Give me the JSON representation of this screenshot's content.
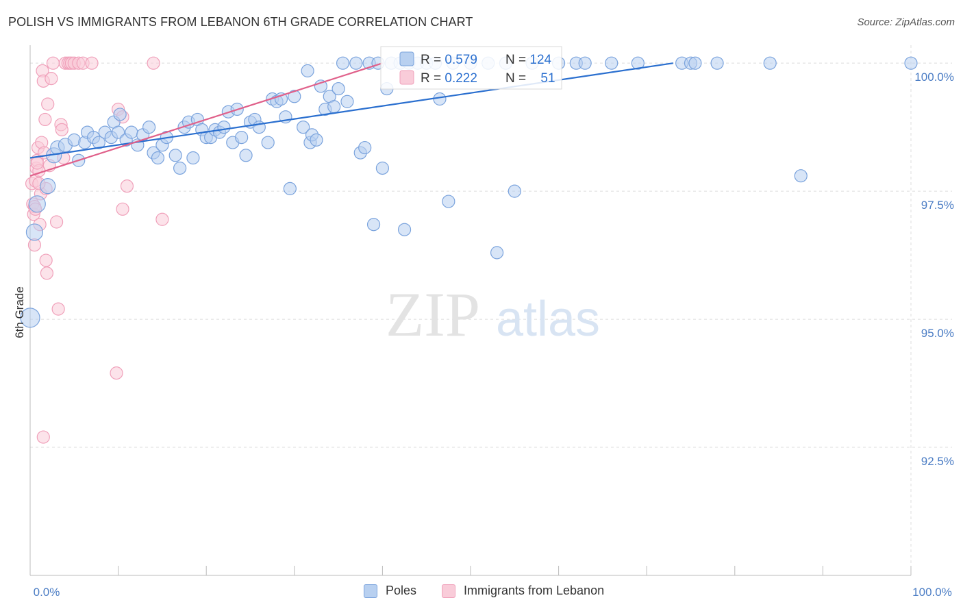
{
  "header": {
    "title": "POLISH VS IMMIGRANTS FROM LEBANON 6TH GRADE CORRELATION CHART",
    "source": "Source: ZipAtlas.com"
  },
  "watermark": {
    "zip": "ZIP",
    "atlas": "atlas"
  },
  "colors": {
    "poles": "#7aa3dd",
    "poles_fill": "#b8d0f0",
    "poles_line": "#2a6fcf",
    "lebanon": "#f0a0ba",
    "lebanon_fill": "#f9ccd9",
    "lebanon_line": "#e0608a",
    "tick_blue": "#4a7cc4",
    "grid": "#dcdcdc"
  },
  "legend_top": {
    "rows": [
      {
        "r_label": "R = ",
        "r_value": "0.579",
        "n_label": "N = ",
        "n_value": "124"
      },
      {
        "r_label": "R = ",
        "r_value": "0.222",
        "n_label": "N = ",
        "n_value": "51"
      }
    ]
  },
  "legend_bottom": {
    "poles": "Poles",
    "lebanon": "Immigrants from Lebanon"
  },
  "chart_data": {
    "type": "scatter",
    "title": "POLISH VS IMMIGRANTS FROM LEBANON 6TH GRADE CORRELATION CHART",
    "xlabel": "",
    "ylabel": "6th Grade",
    "xlim": [
      0,
      100
    ],
    "ylim": [
      90.0,
      100.35
    ],
    "x_tick_labels": [
      "0.0%",
      "100.0%"
    ],
    "y_ticks": [
      92.5,
      95.0,
      97.5,
      100.0
    ],
    "y_tick_labels": [
      "92.5%",
      "95.0%",
      "97.5%",
      "100.0%"
    ],
    "series": [
      {
        "name": "Poles",
        "R": 0.579,
        "N": 124,
        "trend": {
          "x": [
            0,
            73
          ],
          "y": [
            98.15,
            100.0
          ]
        },
        "points": [
          [
            0.0,
            95.03,
            14
          ],
          [
            0.5,
            96.7,
            12
          ],
          [
            0.8,
            97.25,
            12
          ],
          [
            2.0,
            97.6,
            11
          ],
          [
            2.7,
            98.2,
            11
          ],
          [
            3.1,
            98.35,
            10
          ],
          [
            4.0,
            98.4,
            10
          ],
          [
            5.0,
            98.5,
            9
          ],
          [
            5.5,
            98.1,
            9
          ],
          [
            6.2,
            98.45,
            9
          ],
          [
            6.5,
            98.65,
            9
          ],
          [
            7.2,
            98.55,
            9
          ],
          [
            7.8,
            98.45,
            9
          ],
          [
            8.5,
            98.65,
            9
          ],
          [
            9.2,
            98.55,
            9
          ],
          [
            9.5,
            98.85,
            9
          ],
          [
            10.0,
            98.65,
            9
          ],
          [
            10.2,
            99.0,
            9
          ],
          [
            10.9,
            98.5,
            9
          ],
          [
            11.5,
            98.65,
            9
          ],
          [
            12.2,
            98.4,
            9
          ],
          [
            12.8,
            98.6,
            9
          ],
          [
            13.5,
            98.75,
            9
          ],
          [
            14.0,
            98.25,
            9
          ],
          [
            14.5,
            98.15,
            9
          ],
          [
            15.0,
            98.4,
            9
          ],
          [
            15.5,
            98.55,
            9
          ],
          [
            16.5,
            98.2,
            9
          ],
          [
            17.0,
            97.95,
            9
          ],
          [
            17.5,
            98.75,
            9
          ],
          [
            18.0,
            98.85,
            9
          ],
          [
            18.5,
            98.15,
            9
          ],
          [
            19.0,
            98.9,
            9
          ],
          [
            19.5,
            98.7,
            9
          ],
          [
            20.0,
            98.55,
            9
          ],
          [
            20.5,
            98.55,
            9
          ],
          [
            21.0,
            98.7,
            9
          ],
          [
            21.5,
            98.65,
            9
          ],
          [
            22.0,
            98.75,
            9
          ],
          [
            22.5,
            99.05,
            9
          ],
          [
            23.0,
            98.45,
            9
          ],
          [
            23.5,
            99.1,
            9
          ],
          [
            24.0,
            98.55,
            9
          ],
          [
            24.5,
            98.2,
            9
          ],
          [
            25.0,
            98.85,
            9
          ],
          [
            25.5,
            98.9,
            9
          ],
          [
            26.0,
            98.75,
            9
          ],
          [
            27.0,
            98.45,
            9
          ],
          [
            27.5,
            99.3,
            9
          ],
          [
            28.0,
            99.25,
            9
          ],
          [
            28.5,
            99.3,
            9
          ],
          [
            29.0,
            98.95,
            9
          ],
          [
            29.5,
            97.55,
            9
          ],
          [
            30.0,
            99.35,
            9
          ],
          [
            31.0,
            98.75,
            9
          ],
          [
            31.5,
            99.85,
            9
          ],
          [
            31.8,
            98.45,
            9
          ],
          [
            32.0,
            98.6,
            9
          ],
          [
            32.5,
            98.5,
            9
          ],
          [
            33.0,
            99.55,
            9
          ],
          [
            33.5,
            99.1,
            9
          ],
          [
            34.0,
            99.35,
            9
          ],
          [
            34.5,
            99.15,
            9
          ],
          [
            35.0,
            99.5,
            9
          ],
          [
            35.5,
            100.0,
            9
          ],
          [
            36.0,
            99.25,
            9
          ],
          [
            37.0,
            100.0,
            9
          ],
          [
            37.5,
            98.25,
            9
          ],
          [
            38.0,
            98.35,
            9
          ],
          [
            38.5,
            100.0,
            9
          ],
          [
            39.0,
            96.85,
            9
          ],
          [
            39.5,
            100.0,
            9
          ],
          [
            40.0,
            97.95,
            9
          ],
          [
            40.5,
            99.5,
            9
          ],
          [
            41.0,
            100.0,
            9
          ],
          [
            42.0,
            100.0,
            9
          ],
          [
            42.5,
            96.75,
            9
          ],
          [
            43.0,
            100.0,
            9
          ],
          [
            44.0,
            100.0,
            9
          ],
          [
            45.0,
            100.0,
            9
          ],
          [
            46.0,
            100.0,
            9
          ],
          [
            46.5,
            99.3,
            9
          ],
          [
            47.5,
            97.3,
            9
          ],
          [
            48.0,
            100.0,
            9
          ],
          [
            50.0,
            100.0,
            9
          ],
          [
            52.0,
            100.0,
            9
          ],
          [
            53.0,
            96.3,
            9
          ],
          [
            54.0,
            100.0,
            9
          ],
          [
            55.0,
            97.5,
            9
          ],
          [
            57.0,
            100.0,
            9
          ],
          [
            60.0,
            100.0,
            9
          ],
          [
            62.0,
            100.0,
            9
          ],
          [
            63.0,
            100.0,
            9
          ],
          [
            66.0,
            100.0,
            9
          ],
          [
            69.0,
            100.0,
            9
          ],
          [
            74.0,
            100.0,
            9
          ],
          [
            75.0,
            100.0,
            9
          ],
          [
            75.5,
            100.0,
            9
          ],
          [
            78.0,
            100.0,
            9
          ],
          [
            84.0,
            100.0,
            9
          ],
          [
            87.5,
            97.8,
            9
          ],
          [
            100.0,
            100.0,
            9
          ]
        ]
      },
      {
        "name": "Immigrants from Lebanon",
        "R": 0.222,
        "N": 51,
        "trend": {
          "x": [
            0,
            40
          ],
          "y": [
            97.8,
            100.0
          ]
        },
        "points": [
          [
            0.2,
            97.65,
            9
          ],
          [
            0.3,
            97.25,
            9
          ],
          [
            0.4,
            97.05,
            9
          ],
          [
            0.5,
            97.2,
            9
          ],
          [
            0.5,
            96.45,
            9
          ],
          [
            0.6,
            97.7,
            9
          ],
          [
            0.7,
            97.95,
            9
          ],
          [
            0.8,
            98.1,
            9
          ],
          [
            0.9,
            98.35,
            9
          ],
          [
            1.0,
            97.9,
            9
          ],
          [
            1.1,
            96.85,
            9
          ],
          [
            1.2,
            97.45,
            9
          ],
          [
            1.3,
            98.45,
            9
          ],
          [
            1.4,
            99.85,
            9
          ],
          [
            1.5,
            99.65,
            9
          ],
          [
            1.6,
            98.25,
            9
          ],
          [
            1.7,
            98.9,
            9
          ],
          [
            1.8,
            97.55,
            9
          ],
          [
            1.8,
            96.15,
            9
          ],
          [
            1.9,
            95.9,
            9
          ],
          [
            2.0,
            99.2,
            9
          ],
          [
            2.2,
            98.0,
            9
          ],
          [
            2.4,
            99.7,
            9
          ],
          [
            2.6,
            100.0,
            9
          ],
          [
            3.0,
            96.9,
            9
          ],
          [
            3.2,
            95.2,
            9
          ],
          [
            3.5,
            98.8,
            9
          ],
          [
            3.6,
            98.7,
            9
          ],
          [
            3.8,
            98.15,
            9
          ],
          [
            4.0,
            100.0,
            9
          ],
          [
            4.3,
            100.0,
            9
          ],
          [
            4.5,
            100.0,
            9
          ],
          [
            4.7,
            100.0,
            9
          ],
          [
            5.0,
            100.0,
            9
          ],
          [
            5.5,
            100.0,
            9
          ],
          [
            6.0,
            100.0,
            9
          ],
          [
            7.0,
            100.0,
            9
          ],
          [
            9.8,
            93.95,
            9
          ],
          [
            10.0,
            99.1,
            9
          ],
          [
            10.5,
            98.95,
            9
          ],
          [
            10.5,
            97.15,
            9
          ],
          [
            11.0,
            97.6,
            9
          ],
          [
            14.0,
            100.0,
            9
          ],
          [
            15.0,
            96.95,
            9
          ],
          [
            1.5,
            92.7,
            9
          ],
          [
            1.0,
            97.65,
            9
          ],
          [
            0.8,
            98.05,
            9
          ],
          [
            0.6,
            97.15,
            9
          ]
        ]
      }
    ]
  }
}
